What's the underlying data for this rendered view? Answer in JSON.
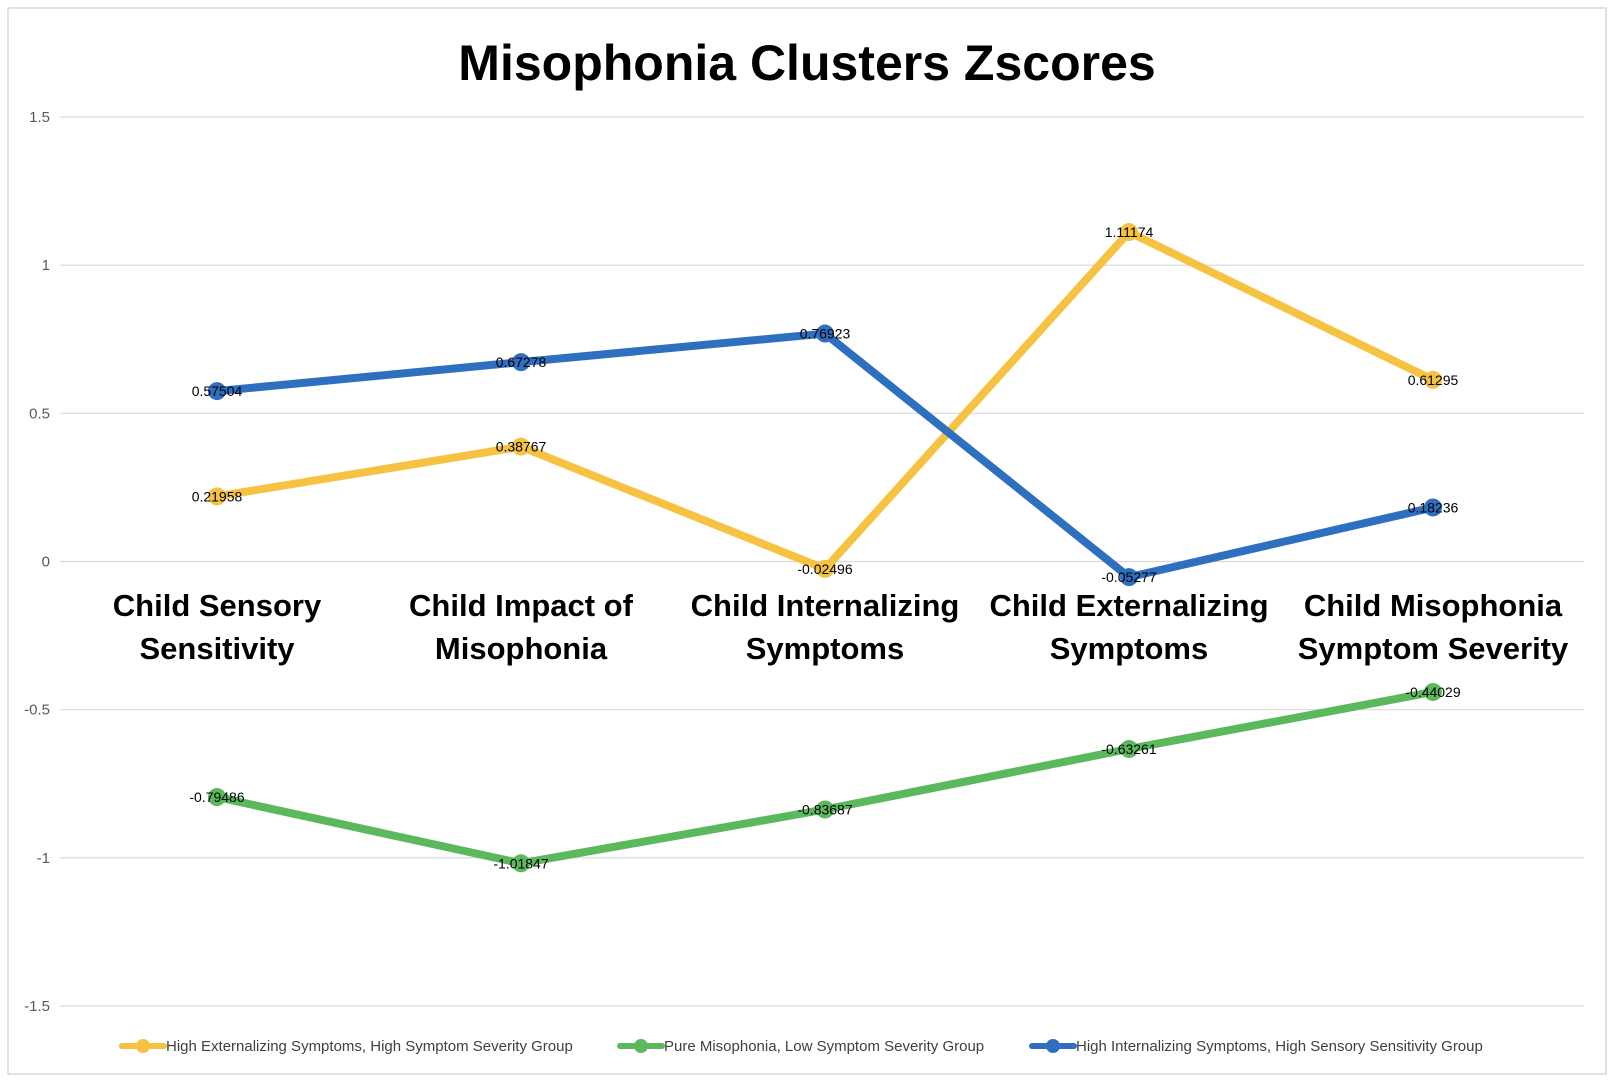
{
  "chart_data": {
    "type": "line",
    "title": "Misophonia Clusters Zscores",
    "xlabel": "",
    "ylabel": "",
    "ylim": [
      -1.5,
      1.5
    ],
    "yticks": [
      1.5,
      1,
      0.5,
      0,
      -0.5,
      -1,
      -1.5
    ],
    "ytick_labels": [
      "1.5",
      "1",
      "0.5",
      "0",
      "-0.5",
      "-1",
      "-1.5"
    ],
    "grid": true,
    "legend_position": "bottom",
    "categories": [
      [
        "Child Sensory",
        "Sensitivity"
      ],
      [
        "Child Impact of",
        "Misophonia"
      ],
      [
        "Child Internalizing",
        "Symptoms"
      ],
      [
        "Child Externalizing",
        "Symptoms"
      ],
      [
        "Child Misophonia",
        "Symptom Severity"
      ]
    ],
    "series": [
      {
        "name": "High Externalizing Symptoms, High Symptom Severity Group",
        "color": "#F5C242",
        "values": [
          0.21958,
          0.38767,
          -0.02496,
          1.11174,
          0.61295
        ],
        "labels": [
          "0.21958",
          "0.38767",
          "-0.02496",
          "1.11174",
          "0.61295"
        ]
      },
      {
        "name": "Pure Misophonia, Low Symptom Severity Group",
        "color": "#5CB85C",
        "values": [
          -0.79486,
          -1.01847,
          -0.83687,
          -0.63261,
          -0.44029
        ],
        "labels": [
          "-0.79486",
          "-1.01847",
          "-0.83687",
          "-0.63261",
          "-0.44029"
        ]
      },
      {
        "name": "High Internalizing Symptoms, High Sensory Sensitivity Group",
        "color": "#2F6FBF",
        "values": [
          0.57504,
          0.67278,
          0.76923,
          -0.05277,
          0.18236
        ],
        "labels": [
          "0.57504",
          "0.67278",
          "0.76923",
          "-0.05277",
          "0.18236"
        ]
      }
    ]
  }
}
